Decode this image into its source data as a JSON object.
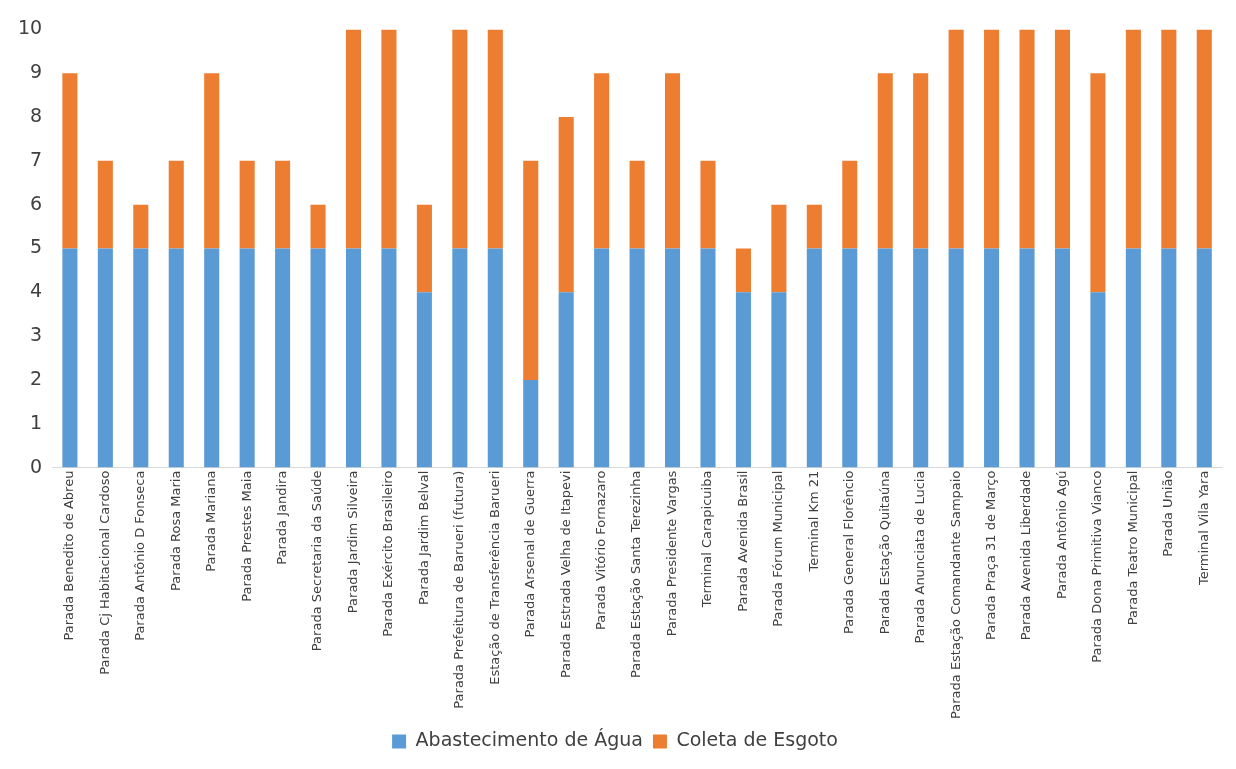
{
  "chart_data": {
    "type": "bar",
    "stacked": true,
    "legend": "bottom",
    "grid": false,
    "categories": [
      "Parada Benedito de Abreu",
      "Parada Cj Habitacional Cardoso",
      "Parada Antônio D Fonseca",
      "Parada Rosa Maria",
      "Parada Mariana",
      "Parada Prestes Maia",
      "Parada Jandira",
      "Parada Secretaria da Saúde",
      "Parada Jardim Silveira",
      "Parada Exército Brasileiro",
      "Parada Jardim Belval",
      "Parada Prefeitura de Barueri (futura)",
      "Estação de Transferência Barueri",
      "Parada Arsenal de Guerra",
      "Parada Estrada Velha de Itapevi",
      "Parada Vitório Fornazaro",
      "Parada Estação Santa Terezinha",
      "Parada Presidente Vargas",
      "Terminal Carapicuiba",
      "Parada Avenida Brasil",
      "Parada Fórum Municipal",
      "Terminal Km 21",
      "Parada General Florêncio",
      "Parada Estação Quitaúna",
      "Parada Anunciata de Lucia",
      "Parada Estação Comandante Sampaio",
      "Parada Praça 31 de Março",
      "Parada Avenida Liberdade",
      "Parada Antônio Agú",
      "Parada Dona Primitiva Vianco",
      "Parada Teatro Municipal",
      "Parada União",
      "Terminal Vila Yara"
    ],
    "series": [
      {
        "name": "Abastecimento de Água",
        "color": "#5b9bd5",
        "values": [
          5,
          5,
          5,
          5,
          5,
          5,
          5,
          5,
          5,
          5,
          4,
          5,
          5,
          2,
          4,
          5,
          5,
          5,
          5,
          4,
          4,
          5,
          5,
          5,
          5,
          5,
          5,
          5,
          5,
          4,
          5,
          5,
          5
        ]
      },
      {
        "name": "Coleta de Esgoto",
        "color": "#ed7d31",
        "values": [
          4,
          2,
          1,
          2,
          4,
          2,
          2,
          1,
          5,
          5,
          2,
          5,
          5,
          5,
          4,
          4,
          2,
          4,
          2,
          1,
          2,
          1,
          2,
          4,
          4,
          5,
          5,
          5,
          5,
          5,
          5,
          5,
          5
        ]
      }
    ],
    "ylim": [
      0,
      10
    ],
    "yticks": [
      0,
      1,
      2,
      3,
      4,
      5,
      6,
      7,
      8,
      9,
      10
    ]
  }
}
